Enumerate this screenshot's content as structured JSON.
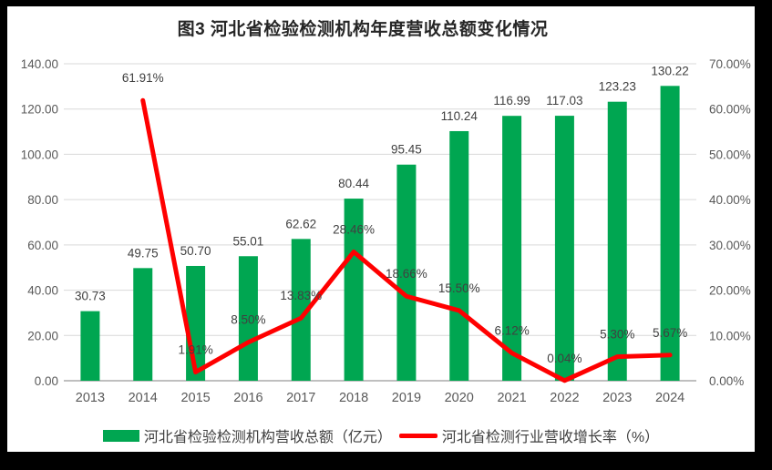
{
  "window": {
    "frame_color": "#000000",
    "canvas_color": "#FFFFFF"
  },
  "chart_data": {
    "type": "combo",
    "title": "图3 河北省检验检测机构年度营收总额变化情况",
    "categories": [
      "2013",
      "2014",
      "2015",
      "2016",
      "2017",
      "2018",
      "2019",
      "2020",
      "2021",
      "2022",
      "2023",
      "2024"
    ],
    "series": [
      {
        "name": "河北省检验检测机构营收总额（亿元）",
        "type": "bar",
        "axis": "left",
        "color": "#00A651",
        "values": [
          30.73,
          49.75,
          50.7,
          55.01,
          62.62,
          80.44,
          95.45,
          110.24,
          116.99,
          117.03,
          123.23,
          130.22
        ],
        "labels": [
          "30.73",
          "49.75",
          "50.70",
          "55.01",
          "62.62",
          "80.44",
          "95.45",
          "110.24",
          "116.99",
          "117.03",
          "123.23",
          "130.22"
        ]
      },
      {
        "name": "河北省检测行业营收增长率（%）",
        "type": "line",
        "axis": "right",
        "color": "#FF0000",
        "values": [
          null,
          61.91,
          1.91,
          8.5,
          13.83,
          28.46,
          18.66,
          15.5,
          6.12,
          0.04,
          5.3,
          5.67
        ],
        "labels": [
          null,
          "61.91%",
          "1.91%",
          "8.50%",
          "13.83%",
          "28.46%",
          "18.66%",
          "15.50%",
          "6.12%",
          "0.04%",
          "5.30%",
          "5.67%"
        ]
      }
    ],
    "left_axis": {
      "min": 0,
      "max": 140,
      "step": 20,
      "tick_labels": [
        "0.00",
        "20.00",
        "40.00",
        "60.00",
        "80.00",
        "100.00",
        "120.00",
        "140.00"
      ]
    },
    "right_axis": {
      "min": 0,
      "max": 70,
      "step": 10,
      "tick_labels": [
        "0.00%",
        "10.00%",
        "20.00%",
        "30.00%",
        "40.00%",
        "50.00%",
        "60.00%",
        "70.00%"
      ]
    },
    "grid": true,
    "gridline_color": "#D9D9D9",
    "baseline_color": "#BFBFBF",
    "axis_text_color": "#595959",
    "data_label_color": "#404040",
    "legend_position": "bottom"
  },
  "legend": {
    "items": [
      {
        "label": "河北省检验检测机构营收总额（亿元）",
        "marker": "bar-swatch",
        "color": "#00A651"
      },
      {
        "label": "河北省检测行业营收增长率（%）",
        "marker": "line-swatch",
        "color": "#FF0000"
      }
    ]
  }
}
